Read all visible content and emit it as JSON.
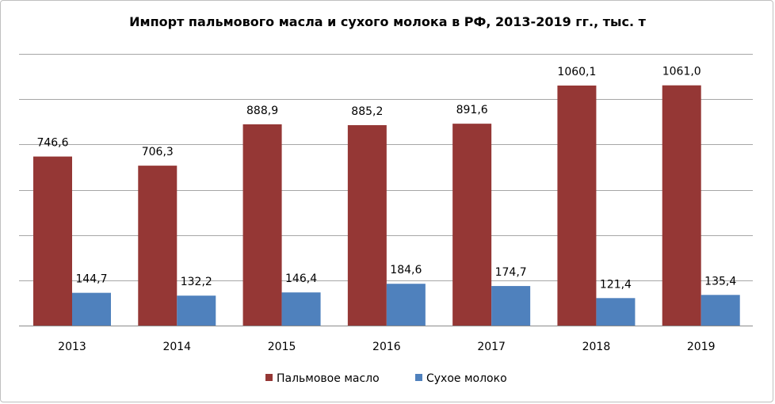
{
  "chart_data": {
    "type": "bar",
    "title": "Импорт пальмового масла и сухого молока в РФ, 2013-2019 гг., тыс. т",
    "categories": [
      "2013",
      "2014",
      "2015",
      "2016",
      "2017",
      "2018",
      "2019"
    ],
    "series": [
      {
        "name": "Пальмовое масло",
        "color": "#953735",
        "values": [
          746.6,
          706.3,
          888.9,
          885.2,
          891.6,
          1060.1,
          1061.0
        ],
        "labels": [
          "746,6",
          "706,3",
          "888,9",
          "885,2",
          "891,6",
          "1060,1",
          "1061,0"
        ]
      },
      {
        "name": "Сухое молоко",
        "color": "#4f81bd",
        "values": [
          144.7,
          132.2,
          146.4,
          184.6,
          174.7,
          121.4,
          135.4
        ],
        "labels": [
          "144,7",
          "132,2",
          "146,4",
          "184,6",
          "174,7",
          "121,4",
          "135,4"
        ]
      }
    ],
    "ylim": [
      0,
      1200
    ],
    "ytick_step": 200,
    "grid": true,
    "legend": "bottom"
  }
}
